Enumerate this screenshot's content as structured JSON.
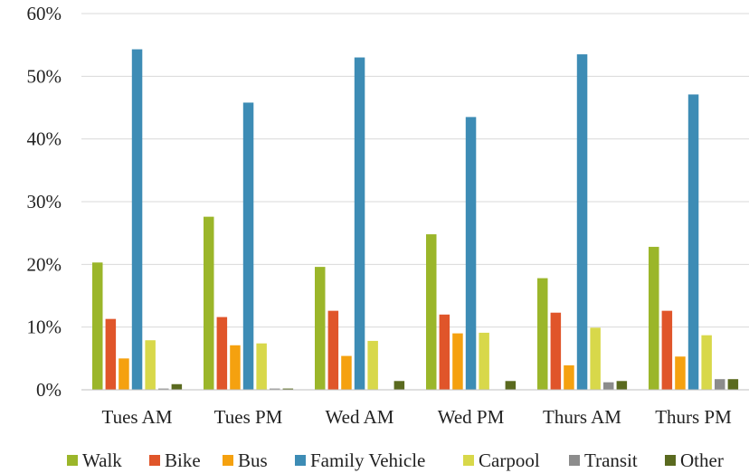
{
  "chart_data": {
    "type": "bar",
    "title": "",
    "xlabel": "",
    "ylabel": "",
    "ylim": [
      0,
      0.6
    ],
    "yticks": [
      "0%",
      "10%",
      "20%",
      "30%",
      "40%",
      "50%",
      "60%"
    ],
    "grid": true,
    "legend_position": "bottom",
    "categories": [
      "Tues AM",
      "Tues PM",
      "Wed AM",
      "Wed PM",
      "Thurs AM",
      "Thurs PM"
    ],
    "series": [
      {
        "name": "Walk",
        "color": "#9bb62a",
        "values": [
          0.203,
          0.276,
          0.196,
          0.248,
          0.178,
          0.228
        ]
      },
      {
        "name": "Bike",
        "color": "#e0552a",
        "values": [
          0.113,
          0.116,
          0.126,
          0.12,
          0.123,
          0.126
        ]
      },
      {
        "name": "Bus",
        "color": "#f5a10f",
        "values": [
          0.05,
          0.071,
          0.054,
          0.09,
          0.039,
          0.053
        ]
      },
      {
        "name": "Family Vehicle",
        "color": "#3d8cb5",
        "values": [
          0.543,
          0.458,
          0.53,
          0.435,
          0.535,
          0.471
        ]
      },
      {
        "name": "Carpool",
        "color": "#d8d84a",
        "values": [
          0.079,
          0.074,
          0.078,
          0.091,
          0.099,
          0.087
        ]
      },
      {
        "name": "Transit",
        "color": "#8c8c8c",
        "values": [
          0.002,
          0.002,
          0.0,
          0.0,
          0.012,
          0.017
        ]
      },
      {
        "name": "Other",
        "color": "#5a6a1f",
        "values": [
          0.009,
          0.002,
          0.014,
          0.014,
          0.014,
          0.017
        ]
      }
    ]
  }
}
